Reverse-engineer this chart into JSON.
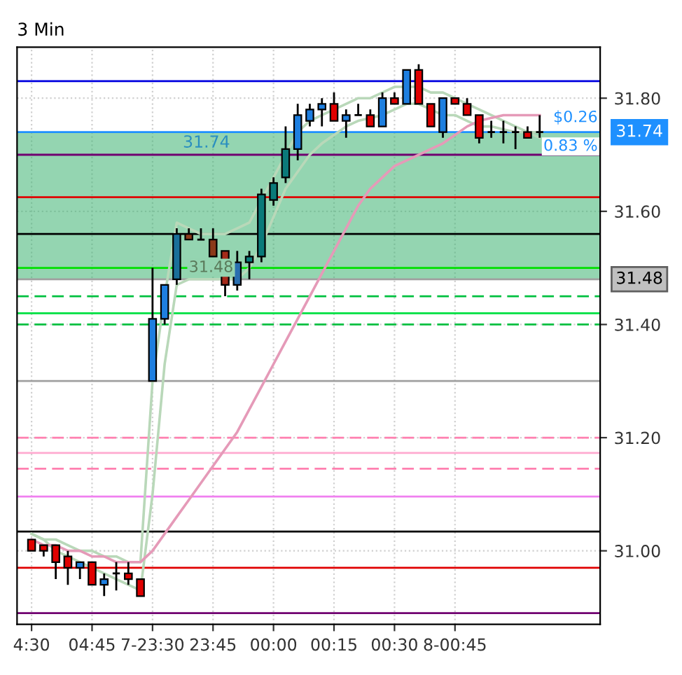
{
  "chart_data": {
    "type": "candlestick",
    "title": "3 Min",
    "categories": [
      "4:30",
      null,
      null,
      null,
      null,
      "04:45",
      null,
      null,
      null,
      null,
      "7-23:30",
      null,
      null,
      null,
      null,
      "23:45",
      null,
      null,
      null,
      null,
      "00:00",
      null,
      null,
      null,
      null,
      "00:15",
      null,
      null,
      null,
      null,
      "00:30",
      null,
      null,
      null,
      null,
      "8-00:45",
      null,
      null,
      null,
      null,
      null,
      null,
      null
    ],
    "ohlc": [
      [
        31.02,
        31.02,
        31.0,
        31.0
      ],
      [
        31.01,
        31.01,
        30.99,
        31.0
      ],
      [
        31.01,
        31.01,
        30.95,
        30.98
      ],
      [
        30.99,
        31.0,
        30.94,
        30.97
      ],
      [
        30.97,
        30.98,
        30.95,
        30.98
      ],
      [
        30.98,
        30.98,
        30.94,
        30.94
      ],
      [
        30.94,
        30.96,
        30.92,
        30.95
      ],
      [
        30.96,
        30.98,
        30.93,
        30.96
      ],
      [
        30.96,
        30.98,
        30.94,
        30.95
      ],
      [
        30.95,
        30.95,
        30.92,
        30.92
      ],
      [
        31.3,
        31.5,
        31.3,
        31.41
      ],
      [
        31.41,
        31.47,
        31.4,
        31.47
      ],
      [
        31.48,
        31.57,
        31.47,
        31.56
      ],
      [
        31.56,
        31.57,
        31.55,
        31.55
      ],
      [
        31.55,
        31.57,
        31.55,
        31.55
      ],
      [
        31.55,
        31.57,
        31.52,
        31.52
      ],
      [
        31.53,
        31.53,
        31.45,
        31.47
      ],
      [
        31.47,
        31.53,
        31.46,
        31.51
      ],
      [
        31.51,
        31.53,
        31.48,
        31.52
      ],
      [
        31.52,
        31.64,
        31.51,
        31.63
      ],
      [
        31.62,
        31.66,
        31.61,
        31.65
      ],
      [
        31.66,
        31.75,
        31.65,
        31.71
      ],
      [
        31.71,
        31.79,
        31.69,
        31.77
      ],
      [
        31.76,
        31.79,
        31.75,
        31.78
      ],
      [
        31.78,
        31.8,
        31.75,
        31.79
      ],
      [
        31.79,
        31.81,
        31.76,
        31.76
      ],
      [
        31.76,
        31.78,
        31.73,
        31.77
      ],
      [
        31.77,
        31.79,
        31.77,
        31.77
      ],
      [
        31.77,
        31.78,
        31.75,
        31.75
      ],
      [
        31.75,
        31.81,
        31.75,
        31.8
      ],
      [
        31.8,
        31.81,
        31.79,
        31.79
      ],
      [
        31.79,
        31.85,
        31.79,
        31.85
      ],
      [
        31.85,
        31.86,
        31.79,
        31.79
      ],
      [
        31.79,
        31.79,
        31.75,
        31.75
      ],
      [
        31.74,
        31.8,
        31.73,
        31.8
      ],
      [
        31.8,
        31.8,
        31.79,
        31.79
      ],
      [
        31.79,
        31.8,
        31.77,
        31.77
      ],
      [
        31.77,
        31.77,
        31.72,
        31.73
      ],
      [
        31.74,
        31.76,
        31.73,
        31.74
      ],
      [
        31.74,
        31.76,
        31.72,
        31.74
      ],
      [
        31.74,
        31.75,
        31.71,
        31.74
      ],
      [
        31.74,
        31.75,
        31.73,
        31.73
      ],
      [
        31.74,
        31.77,
        31.73,
        31.74
      ]
    ],
    "colors": [
      "#e00000",
      "#e00000",
      "#e00000",
      "#e00000",
      "#1e7fe0",
      "#e00000",
      "#1e7fe0",
      "#000000",
      "#e00000",
      "#e00000",
      "#1e7fe0",
      "#1e7fe0",
      "#1a6f9a",
      "#8b3a1a",
      "#000000",
      "#8b3a1a",
      "#a52a1a",
      "#2a6fb0",
      "#0b7a7a",
      "#0b7a7a",
      "#0b7a7a",
      "#0b7a7a",
      "#1e7fe0",
      "#1e7fe0",
      "#1e7fe0",
      "#e00000",
      "#1e7fe0",
      "#000000",
      "#e00000",
      "#1e7fe0",
      "#e00000",
      "#1e7fe0",
      "#e00000",
      "#e00000",
      "#1e7fe0",
      "#e00000",
      "#e00000",
      "#e00000",
      "#000000",
      "#000000",
      "#000000",
      "#e00000",
      "#000000"
    ],
    "series": [
      {
        "type": "line",
        "color": "#b9d8b9",
        "values": [
          31.03,
          31.02,
          31.02,
          31.01,
          31.0,
          31.0,
          30.99,
          30.99,
          30.98,
          30.98,
          31.3,
          31.45,
          31.58,
          31.57,
          31.56,
          31.56,
          31.56,
          31.57,
          31.58,
          31.62,
          31.66,
          31.7,
          31.74,
          31.76,
          31.77,
          31.78,
          31.79,
          31.8,
          31.8,
          31.81,
          31.82,
          31.82,
          31.82,
          31.81,
          31.81,
          31.8,
          31.79,
          31.78,
          31.77,
          31.76,
          31.75,
          31.74,
          31.73
        ]
      },
      {
        "type": "line",
        "color": "#b9d8b9",
        "values": [
          31.03,
          31.02,
          31.0,
          30.99,
          30.98,
          30.97,
          30.96,
          30.95,
          30.94,
          30.93,
          31.1,
          31.33,
          31.47,
          31.48,
          31.48,
          31.48,
          31.48,
          31.48,
          31.5,
          31.54,
          31.59,
          31.64,
          31.67,
          31.7,
          31.72,
          31.735,
          31.75,
          31.76,
          31.765,
          31.77,
          31.78,
          31.79,
          31.79,
          31.78,
          31.77,
          31.77,
          31.76,
          31.75,
          31.75,
          31.745,
          31.74,
          31.74,
          31.74
        ]
      },
      {
        "type": "line",
        "color": "#e59ab8",
        "values": [
          31.02,
          31.01,
          31.01,
          31.0,
          31.0,
          30.99,
          30.99,
          30.98,
          30.98,
          30.98,
          31.0,
          31.03,
          31.06,
          31.09,
          31.12,
          31.15,
          31.18,
          31.21,
          31.25,
          31.29,
          31.33,
          31.37,
          31.41,
          31.45,
          31.49,
          31.53,
          31.57,
          31.61,
          31.64,
          31.66,
          31.68,
          31.69,
          31.7,
          31.71,
          31.72,
          31.735,
          31.75,
          31.76,
          31.765,
          31.77,
          31.77,
          31.77,
          31.77
        ]
      }
    ],
    "ylim": [
      30.87,
      31.89
    ],
    "yticks": [
      {
        "value": 31.0,
        "label": "31.00"
      },
      {
        "value": 31.2,
        "label": "31.20"
      },
      {
        "value": 31.4,
        "label": "31.40"
      },
      {
        "value": 31.6,
        "label": "31.60"
      },
      {
        "value": 31.8,
        "label": "31.80"
      }
    ],
    "grid": true,
    "ref_lines": [
      {
        "axis": "y",
        "value": 31.83,
        "color": "#0000e0",
        "line_style": "solid"
      },
      {
        "axis": "y",
        "value": 31.7,
        "color": "#700070",
        "line_style": "solid"
      },
      {
        "axis": "y",
        "value": 31.625,
        "color": "#e00000",
        "line_style": "solid"
      },
      {
        "axis": "y",
        "value": 31.56,
        "color": "#000000",
        "line_style": "solid"
      },
      {
        "axis": "y",
        "value": 31.5,
        "color": "#00e000",
        "line_style": "solid"
      },
      {
        "axis": "y",
        "value": 31.45,
        "color": "#00c040",
        "line_style": "dashed"
      },
      {
        "axis": "y",
        "value": 31.42,
        "color": "#00e040",
        "line_style": "solid"
      },
      {
        "axis": "y",
        "value": 31.4,
        "color": "#00c040",
        "line_style": "dashed"
      },
      {
        "axis": "y",
        "value": 31.3,
        "color": "#a0a0a0",
        "line_style": "solid"
      },
      {
        "axis": "y",
        "value": 31.2,
        "color": "#ff80b0",
        "line_style": "dashed"
      },
      {
        "axis": "y",
        "value": 31.173,
        "color": "#ffaad0",
        "line_style": "solid"
      },
      {
        "axis": "y",
        "value": 31.145,
        "color": "#ff80b0",
        "line_style": "dashed"
      },
      {
        "axis": "y",
        "value": 31.096,
        "color": "#f080f0",
        "line_style": "solid"
      },
      {
        "axis": "y",
        "value": 31.034,
        "color": "#000000",
        "line_style": "solid"
      },
      {
        "axis": "y",
        "value": 30.97,
        "color": "#e00000",
        "line_style": "solid"
      },
      {
        "axis": "y",
        "value": 30.89,
        "color": "#700070",
        "line_style": "solid"
      },
      {
        "axis": "y",
        "value": 31.74,
        "color": "#1e90ff",
        "line_style": "solid",
        "label": "31.74"
      },
      {
        "axis": "y",
        "value": 31.48,
        "color": "#a0a0a0",
        "line_style": "solid",
        "label": "31.48"
      }
    ],
    "bands": [
      {
        "axis": "y",
        "from": 31.48,
        "to": 31.74,
        "label": "31.74",
        "color": "#3cb371"
      }
    ],
    "annotations": [
      "31.48",
      "$0.26",
      "0.83 %"
    ]
  }
}
